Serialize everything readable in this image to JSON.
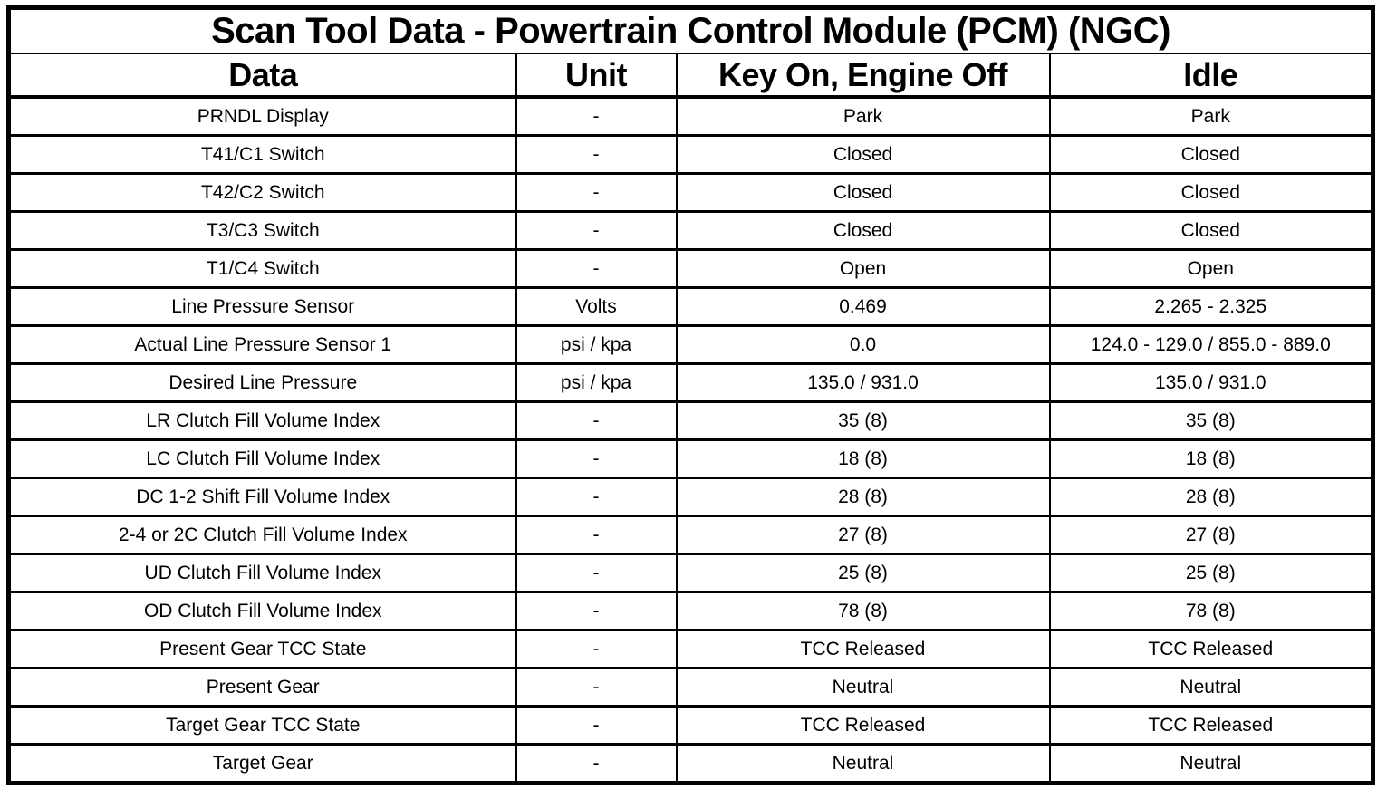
{
  "page": {
    "title": "Scan Tool Data - Powertrain Control Module (PCM) (NGC)"
  },
  "table": {
    "columns": [
      "Data",
      "Unit",
      "Key On, Engine Off",
      "Idle"
    ],
    "column_keys": [
      "data",
      "unit",
      "key-on-engine-off",
      "idle"
    ],
    "rows": [
      [
        "PRNDL Display",
        "-",
        "Park",
        "Park"
      ],
      [
        "T41/C1 Switch",
        "-",
        "Closed",
        "Closed"
      ],
      [
        "T42/C2 Switch",
        "-",
        "Closed",
        "Closed"
      ],
      [
        "T3/C3 Switch",
        "-",
        "Closed",
        "Closed"
      ],
      [
        "T1/C4 Switch",
        "-",
        "Open",
        "Open"
      ],
      [
        "Line Pressure Sensor",
        "Volts",
        "0.469",
        "2.265 - 2.325"
      ],
      [
        "Actual Line Pressure Sensor 1",
        "psi / kpa",
        "0.0",
        "124.0 - 129.0 / 855.0 - 889.0"
      ],
      [
        "Desired Line Pressure",
        "psi / kpa",
        "135.0 / 931.0",
        "135.0 / 931.0"
      ],
      [
        "LR Clutch Fill Volume Index",
        "-",
        "35 (8)",
        "35 (8)"
      ],
      [
        "LC Clutch Fill Volume Index",
        "-",
        "18 (8)",
        "18 (8)"
      ],
      [
        "DC 1-2 Shift Fill Volume Index",
        "-",
        "28 (8)",
        "28 (8)"
      ],
      [
        "2-4 or 2C Clutch Fill Volume Index",
        "-",
        "27 (8)",
        "27 (8)"
      ],
      [
        "UD Clutch Fill Volume Index",
        "-",
        "25 (8)",
        "25 (8)"
      ],
      [
        "OD Clutch Fill Volume Index",
        "-",
        "78 (8)",
        "78 (8)"
      ],
      [
        "Present Gear TCC State",
        "-",
        "TCC Released",
        "TCC Released"
      ],
      [
        "Present Gear",
        "-",
        "Neutral",
        "Neutral"
      ],
      [
        "Target Gear TCC State",
        "-",
        "TCC Released",
        "TCC Released"
      ],
      [
        "Target Gear",
        "-",
        "Neutral",
        "Neutral"
      ]
    ]
  },
  "colors": {
    "border": "#000000",
    "text": "#000000",
    "background": "#ffffff"
  }
}
